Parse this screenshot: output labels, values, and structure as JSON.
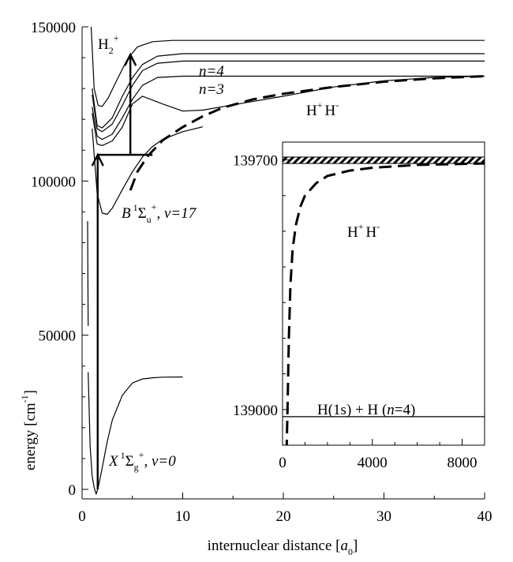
{
  "chart_data": {
    "type": "line",
    "main": {
      "xlabel_prefix": "internuclear distance [",
      "xlabel_var": "a",
      "xlabel_sub": "0",
      "xlabel_suffix": "]",
      "ylabel_prefix": "energy [cm",
      "ylabel_sup": "-1",
      "ylabel_suffix": "]",
      "xlim": [
        0,
        40
      ],
      "ylim": [
        -2500,
        150000
      ],
      "x_ticks": [
        0,
        10,
        20,
        30,
        40
      ],
      "x_tick_labels": [
        "0",
        "10",
        "20",
        "30",
        "40"
      ],
      "y_ticks": [
        0,
        50000,
        100000,
        150000
      ],
      "y_tick_labels": [
        "0",
        "50000",
        "100000",
        "150000"
      ],
      "grid": false,
      "curves": [
        {
          "style": "solid",
          "points": [
            [
              0.6,
              38000
            ],
            [
              0.8,
              14000
            ],
            [
              1,
              4200
            ],
            [
              1.2,
              600
            ],
            [
              1.4,
              -1500
            ],
            [
              1.6,
              600
            ],
            [
              2,
              7000
            ],
            [
              2.5,
              15500
            ],
            [
              3,
              22500
            ],
            [
              4,
              30500
            ],
            [
              5,
              34500
            ],
            [
              6,
              35800
            ],
            [
              7,
              36200
            ],
            [
              8,
              36400
            ],
            [
              10,
              36450
            ]
          ]
        },
        {
          "style": "solid",
          "points": [
            [
              0.55,
              87000
            ],
            [
              0.6,
              53000
            ]
          ]
        },
        {
          "style": "solid",
          "points": [
            [
              0.9,
              150000
            ],
            [
              1.2,
              130000
            ],
            [
              1.6,
              124500
            ],
            [
              2,
              124200
            ],
            [
              2.6,
              127000
            ],
            [
              3.5,
              133000
            ],
            [
              4.5,
              139500
            ],
            [
              5.5,
              143500
            ],
            [
              7,
              145200
            ],
            [
              9,
              145600
            ],
            [
              12,
              145600
            ],
            [
              40,
              145600
            ]
          ]
        },
        {
          "style": "solid",
          "points": [
            [
              1,
              130000
            ],
            [
              1.5,
              118000
            ],
            [
              2,
              117200
            ],
            [
              3,
              120500
            ],
            [
              4,
              127500
            ],
            [
              5,
              133500
            ],
            [
              6,
              137800
            ],
            [
              7.5,
              140500
            ],
            [
              10,
              141300
            ],
            [
              40,
              141300
            ]
          ]
        },
        {
          "style": "solid",
          "points": [
            [
              1,
              128000
            ],
            [
              1.5,
              117000
            ],
            [
              2,
              116000
            ],
            [
              3,
              118500
            ],
            [
              4,
              124500
            ],
            [
              5,
              131000
            ],
            [
              6,
              135800
            ],
            [
              7.5,
              138200
            ],
            [
              10,
              138900
            ],
            [
              40,
              138900
            ]
          ]
        },
        {
          "style": "solid",
          "points": [
            [
              1,
              124000
            ],
            [
              1.5,
              114500
            ],
            [
              2,
              113500
            ],
            [
              3,
              115200
            ],
            [
              4,
              120500
            ],
            [
              5,
              126500
            ],
            [
              6,
              131000
            ],
            [
              7.5,
              133600
            ],
            [
              10,
              134000
            ],
            [
              40,
              134000
            ]
          ]
        },
        {
          "style": "solid",
          "points": [
            [
              1,
              122000
            ],
            [
              1.5,
              112000
            ],
            [
              2,
              111500
            ],
            [
              3,
              113000
            ],
            [
              4,
              117500
            ],
            [
              5,
              125000
            ],
            [
              6,
              127500
            ],
            [
              8,
              125000
            ],
            [
              10,
              122700
            ],
            [
              12,
              123000
            ],
            [
              15,
              124700
            ],
            [
              20,
              127500
            ],
            [
              25,
              130500
            ],
            [
              30,
              132500
            ],
            [
              35,
              133600
            ],
            [
              40,
              134000
            ]
          ]
        },
        {
          "style": "solid",
          "points": [
            [
              1,
              117000
            ],
            [
              1.5,
              96000
            ],
            [
              2,
              89600
            ],
            [
              2.5,
              89200
            ],
            [
              3,
              91200
            ],
            [
              4,
              97200
            ],
            [
              5,
              103000
            ],
            [
              6,
              107800
            ],
            [
              7,
              111200
            ],
            [
              8,
              113500
            ],
            [
              10,
              116000
            ],
            [
              12,
              117600
            ]
          ]
        },
        {
          "style": "dashed",
          "points": [
            [
              4.8,
              97000
            ],
            [
              5.5,
              103000
            ],
            [
              6.5,
              108000
            ],
            [
              8,
              113200
            ],
            [
              10,
              117500
            ],
            [
              12,
              121000
            ],
            [
              14,
              123800
            ],
            [
              17,
              126500
            ],
            [
              20,
              128300
            ],
            [
              25,
              130500
            ],
            [
              30,
              132200
            ],
            [
              35,
              133300
            ],
            [
              40,
              134000
            ]
          ]
        }
      ],
      "transitions": [
        {
          "from": [
            1.55,
            0
          ],
          "to": [
            1.55,
            108500
          ],
          "label": "vertical excitation arrow"
        },
        {
          "from": [
            1.55,
            108500
          ],
          "to": [
            7,
            108500
          ],
          "label": "horizontal bar"
        },
        {
          "from": [
            4.8,
            108500
          ],
          "to": [
            4.8,
            141000
          ],
          "label": "second excitation arrow"
        }
      ],
      "annotations": {
        "h2plus_base": "H",
        "h2plus_sub": "2",
        "h2plus_sup": "+",
        "n4": "n=4",
        "n3": "n=3",
        "hh_left": "H",
        "hh_left_sup": "+",
        "hh_right": "H",
        "hh_right_sup": "-",
        "b_state_letter": "B",
        "b_state_mult": "1",
        "b_state_sigma": "Σ",
        "b_state_sub": "u",
        "b_state_sup": "+",
        "b_state_v": ", v=17",
        "x_state_letter": "X",
        "x_state_mult": "1",
        "x_state_sigma": "Σ",
        "x_state_sub": "g",
        "x_state_sup": "+",
        "x_state_v": ", v=0"
      }
    },
    "inset": {
      "xlim": [
        0,
        9000
      ],
      "ylim": [
        138900,
        139750
      ],
      "x_ticks": [
        0,
        4000,
        8000
      ],
      "x_tick_labels": [
        "0",
        "4000",
        "8000"
      ],
      "y_ticks": [
        139000,
        139700
      ],
      "y_tick_labels": [
        "139000",
        "139700"
      ],
      "threshold_band": [
        139690,
        139708
      ],
      "baseline": 138980,
      "dashed_curve": [
        [
          180,
          138880
        ],
        [
          220,
          139000
        ],
        [
          280,
          139200
        ],
        [
          350,
          139350
        ],
        [
          450,
          139450
        ],
        [
          600,
          139520
        ],
        [
          800,
          139570
        ],
        [
          1000,
          139600
        ],
        [
          1500,
          139635
        ],
        [
          2000,
          139655
        ],
        [
          3000,
          139670
        ],
        [
          4000,
          139678
        ],
        [
          6000,
          139686
        ],
        [
          9000,
          139690
        ]
      ],
      "label_hh_left": "H",
      "label_hh_left_sup": "+",
      "label_hh_right": "H",
      "label_hh_right_sup": "-",
      "label_bottom_prefix": "H(1s) + H (",
      "label_bottom_n": "n",
      "label_bottom_suffix": "=4)"
    }
  }
}
